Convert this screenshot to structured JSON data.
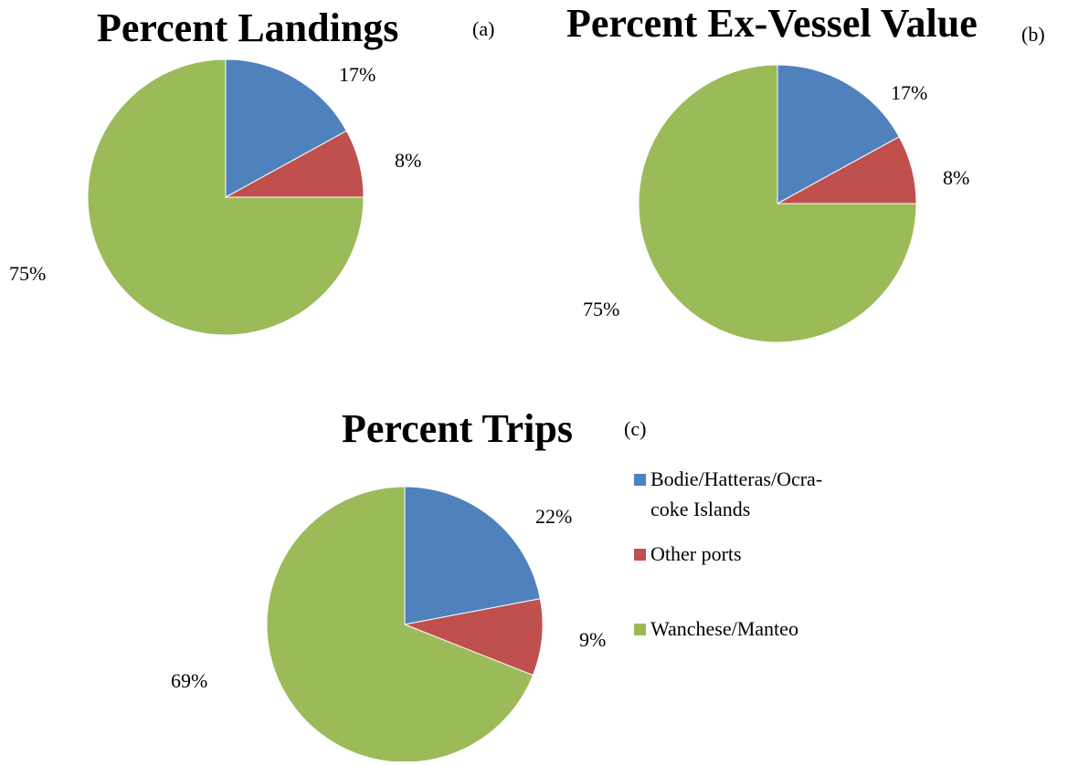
{
  "colors": {
    "Bodie/Hatteras/Ocracoke Islands": "#4f81bd",
    "Other ports": "#c0504d",
    "Wanchese/Manteo": "#9bbb59"
  },
  "legend": {
    "items": [
      {
        "name": "Bodie/Hatteras/Ocracoke Islands",
        "lines": [
          "Bodie/Hatteras/Ocra-",
          "coke Islands"
        ]
      },
      {
        "name": "Other ports",
        "lines": [
          "Other ports"
        ]
      },
      {
        "name": "Wanchese/Manteo",
        "lines": [
          "Wanchese/Manteo"
        ]
      }
    ]
  },
  "chart_data": [
    {
      "type": "pie",
      "title": "Percent Landings",
      "panel": "(a)",
      "categories": [
        "Bodie/Hatteras/Ocracoke Islands",
        "Other ports",
        "Wanchese/Manteo"
      ],
      "values": [
        17,
        8,
        75
      ],
      "labels": [
        "17%",
        "8%",
        "75%"
      ],
      "legend": "none"
    },
    {
      "type": "pie",
      "title": "Percent Ex-Vessel Value",
      "panel": "(b)",
      "categories": [
        "Bodie/Hatteras/Ocracoke Islands",
        "Other ports",
        "Wanchese/Manteo"
      ],
      "values": [
        17,
        8,
        75
      ],
      "labels": [
        "17%",
        "8%",
        "75%"
      ],
      "legend": "none"
    },
    {
      "type": "pie",
      "title": "Percent Trips",
      "panel": "(c)",
      "categories": [
        "Bodie/Hatteras/Ocracoke Islands",
        "Other ports",
        "Wanchese/Manteo"
      ],
      "values": [
        22,
        9,
        69
      ],
      "labels": [
        "22%",
        "9%",
        "69%"
      ],
      "legend": "right"
    }
  ]
}
